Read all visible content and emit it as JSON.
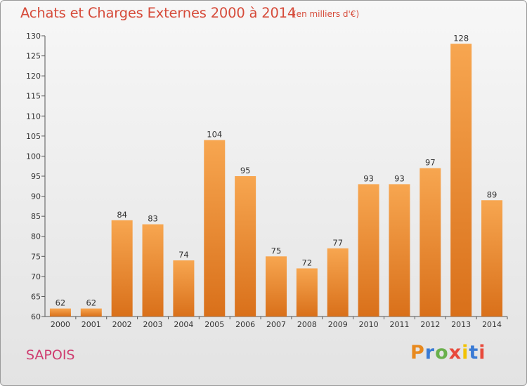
{
  "header": {
    "title": "Achats et Charges Externes 2000 à 2014",
    "unit": "(en milliers d'€)"
  },
  "footer": {
    "commune": "SAPOIS",
    "logo_text": "Proxiti",
    "logo_colors": [
      "#e8891e",
      "#3a7bd5",
      "#6ab04c",
      "#e84a3c",
      "#f2c200",
      "#3a7bd5",
      "#e84a3c"
    ]
  },
  "colors": {
    "bar_top": "#f7a650",
    "bar_bottom": "#d9701a",
    "title": "#d64b3a",
    "commune": "#cf3b6f"
  },
  "chart_data": {
    "type": "bar",
    "title": "Achats et Charges Externes 2000 à 2014",
    "subtitle": "(en milliers d'€)",
    "xlabel": "",
    "ylabel": "",
    "categories": [
      "2000",
      "2001",
      "2002",
      "2003",
      "2004",
      "2005",
      "2006",
      "2007",
      "2008",
      "2009",
      "2010",
      "2011",
      "2012",
      "2013",
      "2014"
    ],
    "values": [
      62,
      62,
      84,
      83,
      74,
      104,
      95,
      75,
      72,
      77,
      93,
      93,
      97,
      128,
      89
    ],
    "ylim": [
      60,
      130
    ],
    "yticks": [
      60,
      65,
      70,
      75,
      80,
      85,
      90,
      95,
      100,
      105,
      110,
      115,
      120,
      125,
      130
    ],
    "grid": false,
    "data_labels": true
  }
}
